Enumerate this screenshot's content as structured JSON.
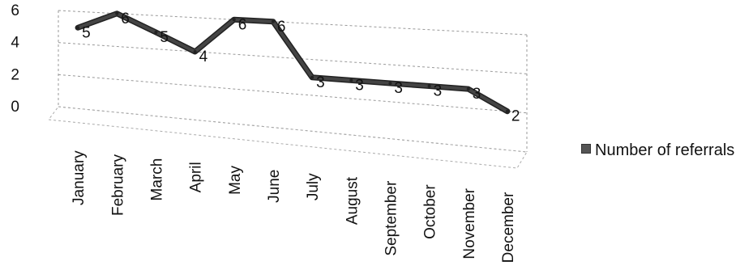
{
  "chart_data": {
    "type": "line",
    "title": "",
    "xlabel": "",
    "ylabel": "",
    "categories": [
      "January",
      "February",
      "March",
      "April",
      "May",
      "June",
      "July",
      "August",
      "September",
      "October",
      "November",
      "December"
    ],
    "series": [
      {
        "name": "Number of referrals",
        "values": [
          5,
          6,
          5,
          4,
          6,
          6,
          3,
          3,
          3,
          3,
          3,
          2
        ]
      }
    ],
    "data_labels": [
      "5",
      "6",
      "5",
      "4",
      "6",
      "6",
      "3",
      "3",
      "3",
      "3",
      "3",
      "2"
    ],
    "y_ticks": [
      "0",
      "2",
      "4",
      "6"
    ],
    "ylim": [
      0,
      6
    ],
    "grid": true,
    "legend_position": "right",
    "line_color": "#444444"
  }
}
